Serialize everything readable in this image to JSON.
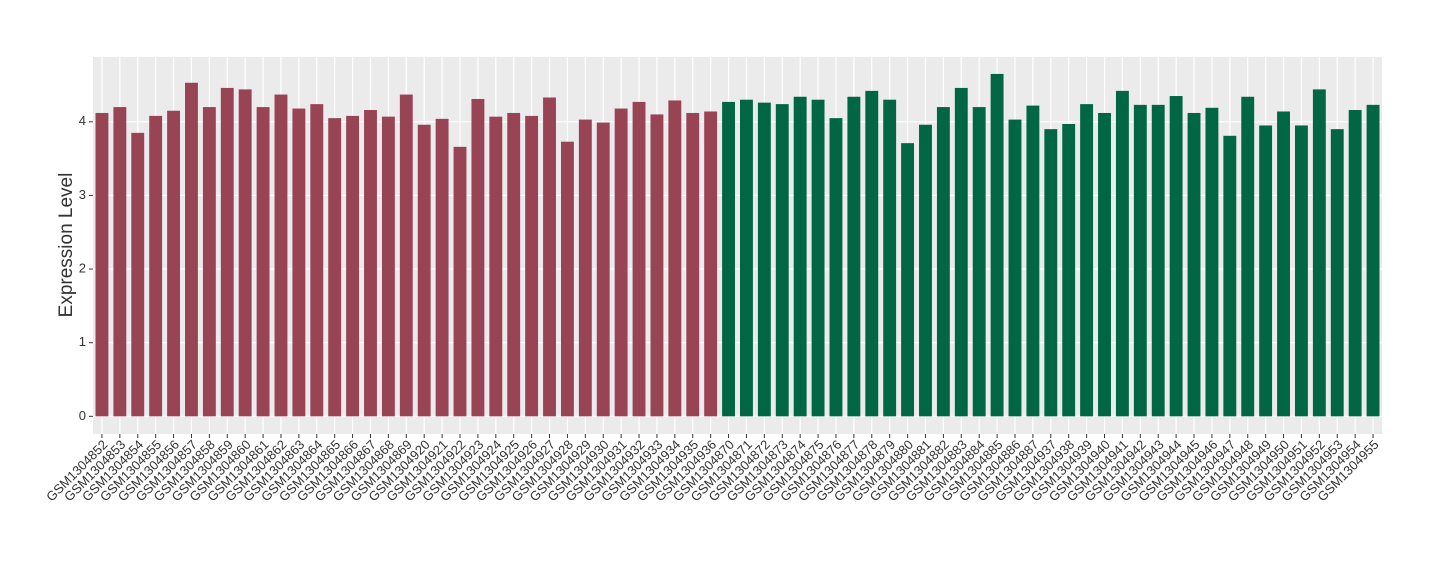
{
  "chart_data": {
    "type": "bar",
    "y_label": "Expression Level",
    "categories": [
      "GSM1304852",
      "GSM1304853",
      "GSM1304854",
      "GSM1304855",
      "GSM1304856",
      "GSM1304857",
      "GSM1304858",
      "GSM1304859",
      "GSM1304860",
      "GSM1304861",
      "GSM1304862",
      "GSM1304863",
      "GSM1304864",
      "GSM1304865",
      "GSM1304866",
      "GSM1304867",
      "GSM1304868",
      "GSM1304869",
      "GSM1304920",
      "GSM1304921",
      "GSM1304922",
      "GSM1304923",
      "GSM1304924",
      "GSM1304925",
      "GSM1304926",
      "GSM1304927",
      "GSM1304928",
      "GSM1304929",
      "GSM1304930",
      "GSM1304931",
      "GSM1304932",
      "GSM1304933",
      "GSM1304934",
      "GSM1304935",
      "GSM1304936",
      "GSM1304870",
      "GSM1304871",
      "GSM1304872",
      "GSM1304873",
      "GSM1304874",
      "GSM1304875",
      "GSM1304876",
      "GSM1304877",
      "GSM1304878",
      "GSM1304879",
      "GSM1304880",
      "GSM1304881",
      "GSM1304882",
      "GSM1304883",
      "GSM1304884",
      "GSM1304885",
      "GSM1304886",
      "GSM1304887",
      "GSM1304937",
      "GSM1304938",
      "GSM1304939",
      "GSM1304940",
      "GSM1304941",
      "GSM1304942",
      "GSM1304943",
      "GSM1304944",
      "GSM1304945",
      "GSM1304946",
      "GSM1304947",
      "GSM1304948",
      "GSM1304949",
      "GSM1304950",
      "GSM1304951",
      "GSM1304952",
      "GSM1304953",
      "GSM1304954",
      "GSM1304955"
    ],
    "values": [
      4.12,
      4.2,
      3.85,
      4.08,
      4.15,
      4.53,
      4.2,
      4.46,
      4.44,
      4.2,
      4.37,
      4.18,
      4.24,
      4.05,
      4.08,
      4.16,
      4.07,
      4.37,
      3.96,
      4.04,
      3.66,
      4.31,
      4.07,
      4.12,
      4.08,
      4.33,
      3.73,
      4.03,
      3.99,
      4.18,
      4.27,
      4.1,
      4.29,
      4.12,
      4.14,
      4.27,
      4.3,
      4.26,
      4.24,
      4.34,
      4.3,
      4.05,
      4.34,
      4.42,
      4.3,
      3.71,
      3.96,
      4.2,
      4.46,
      4.2,
      4.65,
      4.03,
      4.22,
      3.9,
      3.97,
      4.24,
      4.12,
      4.42,
      4.23,
      4.23,
      4.35,
      4.12,
      4.19,
      3.81,
      4.34,
      3.95,
      4.14,
      3.95,
      4.44,
      3.9,
      4.16,
      4.23
    ],
    "group_colors": [
      "#994455",
      "#006644"
    ],
    "group_sizes": [
      35,
      37
    ],
    "ylim": [
      -0.24,
      4.88
    ],
    "yticks": [
      0,
      1,
      2,
      3,
      4
    ],
    "grid": true
  }
}
